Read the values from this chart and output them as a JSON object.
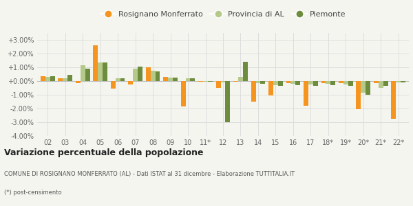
{
  "categories": [
    "02",
    "03",
    "04",
    "05",
    "06",
    "07",
    "08",
    "09",
    "10",
    "11*",
    "12",
    "13",
    "14",
    "15",
    "16",
    "17",
    "18*",
    "19*",
    "20*",
    "21*",
    "22*"
  ],
  "rosignano": [
    0.35,
    0.18,
    -0.15,
    2.6,
    -0.55,
    -0.25,
    1.0,
    0.3,
    -1.85,
    -0.05,
    -0.5,
    -0.05,
    -1.5,
    -1.05,
    -0.15,
    -1.8,
    -0.15,
    -0.15,
    -2.05,
    -0.15,
    -2.75
  ],
  "provincia_al": [
    0.3,
    0.2,
    1.15,
    1.35,
    0.2,
    0.9,
    0.75,
    0.25,
    0.2,
    -0.05,
    -0.1,
    0.3,
    -0.15,
    -0.3,
    -0.2,
    -0.25,
    -0.2,
    -0.25,
    -0.85,
    -0.5,
    -0.12
  ],
  "piemonte": [
    0.35,
    0.45,
    0.92,
    1.35,
    0.2,
    1.05,
    0.7,
    0.25,
    0.2,
    -0.05,
    -3.0,
    1.4,
    -0.2,
    -0.35,
    -0.3,
    -0.35,
    -0.3,
    -0.35,
    -1.0,
    -0.35,
    -0.1
  ],
  "color_rosignano": "#f5941e",
  "color_provincia": "#b5c98a",
  "color_piemonte": "#6e8c3e",
  "bg_color": "#f5f5f0",
  "grid_color": "#dddddd",
  "ylim_min": -4.0,
  "ylim_max": 3.5,
  "yticks": [
    -4.0,
    -3.0,
    -2.0,
    -1.0,
    0.0,
    1.0,
    2.0,
    3.0
  ],
  "title": "Variazione percentuale della popolazione",
  "subtitle": "COMUNE DI ROSIGNANO MONFERRATO (AL) - Dati ISTAT al 31 dicembre - Elaborazione TUTTITALIA.IT",
  "footnote": "(*) post-censimento",
  "legend_labels": [
    "Rosignano Monferrato",
    "Provincia di AL",
    "Piemonte"
  ]
}
